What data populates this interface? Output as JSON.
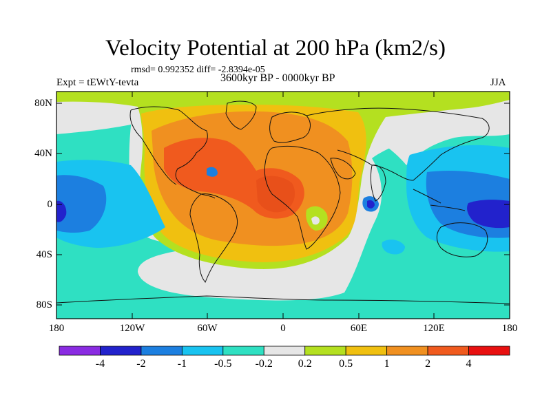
{
  "title": "Velocity Potential at 200 hPa (km2/s)",
  "stats": "rmsd= 0.992352 diff= -2.8394e-05",
  "experiment": "Expt = tEWtY-tevta",
  "period": "3600kyr BP - 0000kyr BP",
  "season": "JJA",
  "map": {
    "lat_labels": [
      "80N",
      "40N",
      "0",
      "40S",
      "80S"
    ],
    "lon_labels": [
      "180",
      "120W",
      "60W",
      "0",
      "60E",
      "120E",
      "180"
    ],
    "lon_range": [
      -180,
      180
    ],
    "lat_range": [
      -90,
      90
    ]
  },
  "colorbar": {
    "labels": [
      "-4",
      "-2",
      "-1",
      "-0.5",
      "-0.2",
      "0.2",
      "0.5",
      "1",
      "2",
      "4"
    ],
    "colors": [
      "#8a2be2",
      "#2222cc",
      "#1c7fe0",
      "#19c3f0",
      "#2fe0c2",
      "#e6e6e6",
      "#b4e020",
      "#f0c010",
      "#f09020",
      "#f05a1e",
      "#e81010"
    ]
  },
  "palette": {
    "ocean_base": "#2fe0c2",
    "near_zero": "#e6e6e6"
  }
}
